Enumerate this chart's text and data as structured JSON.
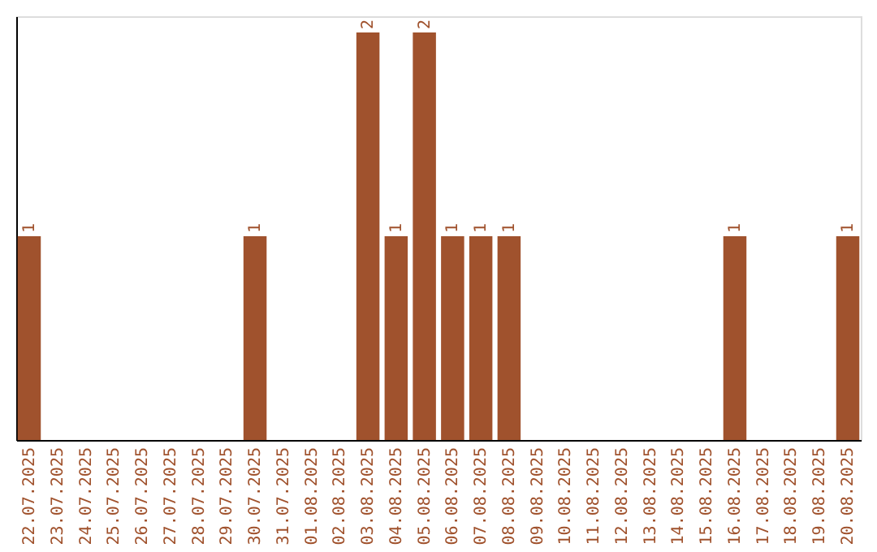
{
  "chart_data": {
    "type": "bar",
    "categories": [
      "22.07.2025",
      "23.07.2025",
      "24.07.2025",
      "25.07.2025",
      "26.07.2025",
      "27.07.2025",
      "28.07.2025",
      "29.07.2025",
      "30.07.2025",
      "31.07.2025",
      "01.08.2025",
      "02.08.2025",
      "03.08.2025",
      "04.08.2025",
      "05.08.2025",
      "06.08.2025",
      "07.08.2025",
      "08.08.2025",
      "09.08.2025",
      "10.08.2025",
      "11.08.2025",
      "12.08.2025",
      "13.08.2025",
      "14.08.2025",
      "15.08.2025",
      "16.08.2025",
      "17.08.2025",
      "18.08.2025",
      "19.08.2025",
      "20.08.2025"
    ],
    "values": [
      1,
      0,
      0,
      0,
      0,
      0,
      0,
      0,
      1,
      0,
      0,
      0,
      2,
      1,
      2,
      1,
      1,
      1,
      0,
      0,
      0,
      0,
      0,
      0,
      0,
      1,
      0,
      0,
      0,
      1
    ],
    "value_labels": [
      "1",
      null,
      null,
      null,
      null,
      null,
      null,
      null,
      "1",
      null,
      null,
      null,
      "2",
      "1",
      "2",
      "1",
      "1",
      "1",
      null,
      null,
      null,
      null,
      null,
      null,
      null,
      "1",
      null,
      null,
      null,
      "1"
    ],
    "color": "#a0522d",
    "ylim": [
      0,
      2.08
    ],
    "tick_labels": "x"
  }
}
